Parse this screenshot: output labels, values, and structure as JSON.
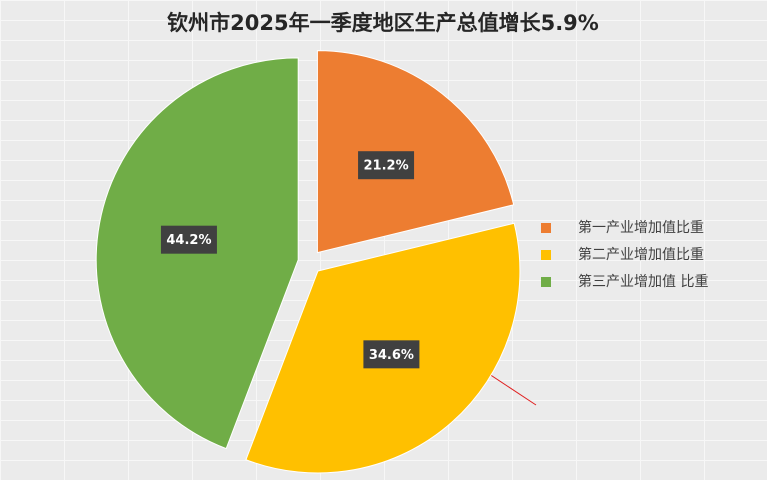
{
  "chart_data": {
    "type": "pie",
    "title": "钦州市2025年一季度地区生产总值增长5.9%",
    "categories": [
      "第一产业增加值比重",
      "第二产业增加值比重",
      "第三产业增加值 比重"
    ],
    "values": [
      21.2,
      34.6,
      44.2
    ],
    "value_labels": [
      "21.2%",
      "34.6%",
      "44.2%"
    ],
    "colors": [
      "#ed7d31",
      "#ffc000",
      "#70ad47"
    ],
    "legend": "right"
  }
}
